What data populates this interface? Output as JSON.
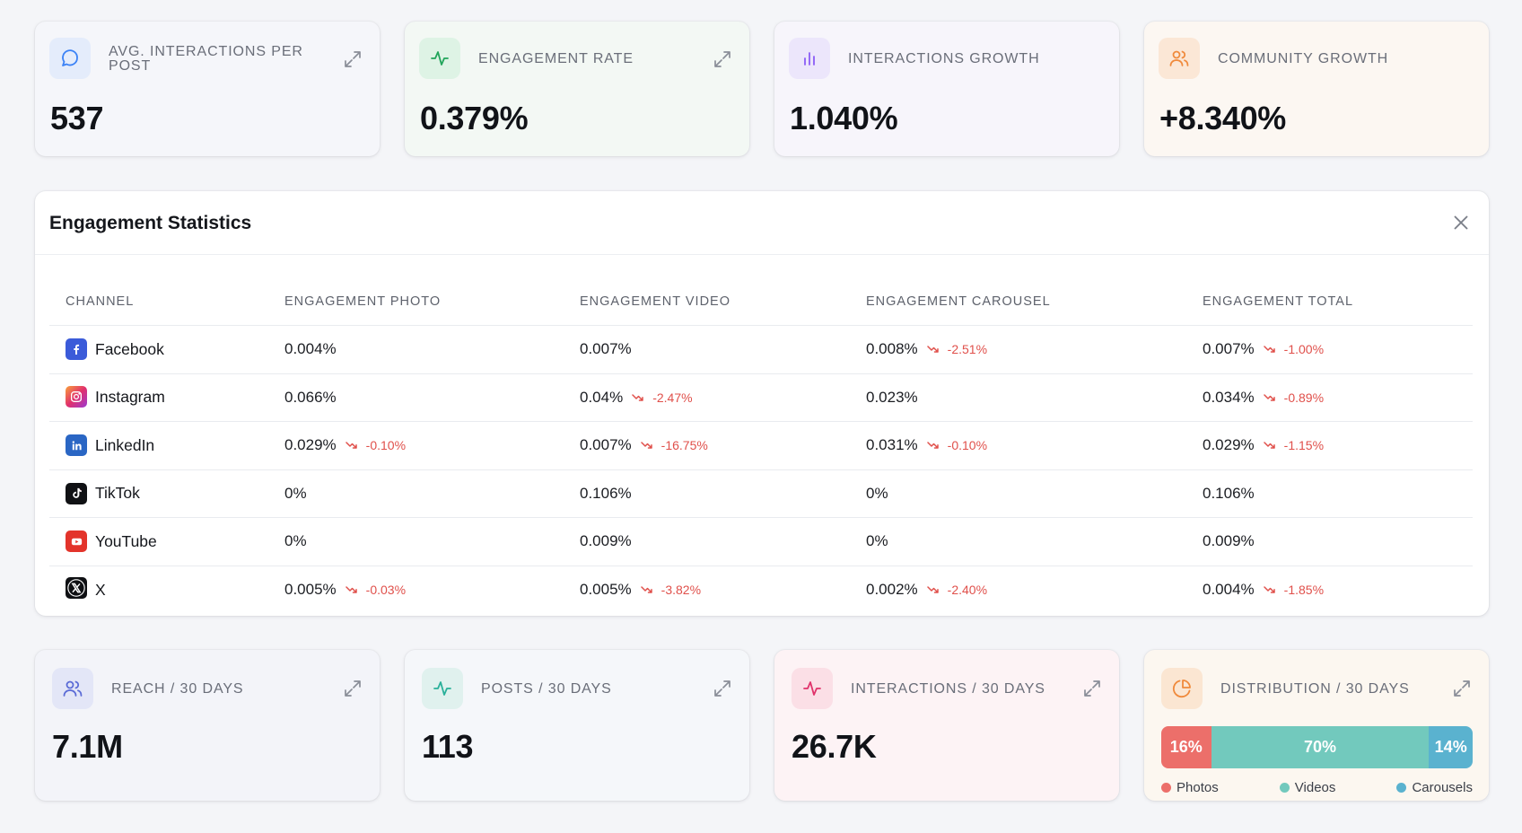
{
  "kpis": [
    {
      "label": "AVG. INTERACTIONS PER POST",
      "value": "537",
      "icon": "chat-bubble-icon",
      "accent": "#3b82f6",
      "icon_bg": "#e4ecfb"
    },
    {
      "label": "ENGAGEMENT RATE",
      "value": "0.379%",
      "icon": "activity-icon",
      "accent": "#22a55b",
      "icon_bg": "#def3e5"
    },
    {
      "label": "INTERACTIONS GROWTH",
      "value": "1.040%",
      "icon": "bar-chart-icon",
      "accent": "#8b5cf6",
      "icon_bg": "#ece6fb"
    },
    {
      "label": "COMMUNITY GROWTH",
      "value": "+8.340%",
      "icon": "users-icon",
      "accent": "#f08a3c",
      "icon_bg": "#fbe7d6"
    }
  ],
  "stats": {
    "title": "Engagement Statistics",
    "columns": [
      "CHANNEL",
      "ENGAGEMENT PHOTO",
      "ENGAGEMENT VIDEO",
      "ENGAGEMENT CAROUSEL",
      "ENGAGEMENT TOTAL"
    ],
    "rows": [
      {
        "channel": "Facebook",
        "icon": "facebook-icon",
        "photo": "0.004%",
        "photo_delta": "",
        "video": "0.007%",
        "video_delta": "",
        "carousel": "0.008%",
        "carousel_delta": "-2.51%",
        "total": "0.007%",
        "total_delta": "-1.00%"
      },
      {
        "channel": "Instagram",
        "icon": "instagram-icon",
        "photo": "0.066%",
        "photo_delta": "",
        "video": "0.04%",
        "video_delta": "-2.47%",
        "carousel": "0.023%",
        "carousel_delta": "",
        "total": "0.034%",
        "total_delta": "-0.89%"
      },
      {
        "channel": "LinkedIn",
        "icon": "linkedin-icon",
        "photo": "0.029%",
        "photo_delta": "-0.10%",
        "video": "0.007%",
        "video_delta": "-16.75%",
        "carousel": "0.031%",
        "carousel_delta": "-0.10%",
        "total": "0.029%",
        "total_delta": "-1.15%"
      },
      {
        "channel": "TikTok",
        "icon": "tiktok-icon",
        "photo": "0%",
        "photo_delta": "",
        "video": "0.106%",
        "video_delta": "",
        "carousel": "0%",
        "carousel_delta": "",
        "total": "0.106%",
        "total_delta": ""
      },
      {
        "channel": "YouTube",
        "icon": "youtube-icon",
        "photo": "0%",
        "photo_delta": "",
        "video": "0.009%",
        "video_delta": "",
        "carousel": "0%",
        "carousel_delta": "",
        "total": "0.009%",
        "total_delta": ""
      },
      {
        "channel": "X",
        "icon": "x-icon",
        "photo": "0.005%",
        "photo_delta": "-0.03%",
        "video": "0.005%",
        "video_delta": "-3.82%",
        "carousel": "0.002%",
        "carousel_delta": "-2.40%",
        "total": "0.004%",
        "total_delta": "-1.85%"
      }
    ],
    "negative_color": "#e0504b"
  },
  "bottom": [
    {
      "label": "REACH / 30 DAYS",
      "value": "7.1M",
      "icon": "users-icon",
      "accent": "#5b6bd6",
      "icon_bg": "#e3e6f7"
    },
    {
      "label": "POSTS / 30 DAYS",
      "value": "113",
      "icon": "activity-icon",
      "accent": "#2ab09a",
      "icon_bg": "#e0f1ee"
    },
    {
      "label": "INTERACTIONS / 30 DAYS",
      "value": "26.7K",
      "icon": "activity-icon",
      "accent": "#e0336b",
      "icon_bg": "#fbdfe6"
    }
  ],
  "distribution": {
    "label": "DISTRIBUTION / 30 DAYS",
    "icon": "pie-chart-icon",
    "accent": "#f08a3c",
    "icon_bg": "#fbe6d2",
    "segments": [
      {
        "name": "Photos",
        "percent": 16,
        "text": "16%",
        "color": "#ec6f6a"
      },
      {
        "name": "Videos",
        "percent": 70,
        "text": "70%",
        "color": "#72c9bd"
      },
      {
        "name": "Carousels",
        "percent": 14,
        "text": "14%",
        "color": "#5ab2cf"
      }
    ]
  }
}
